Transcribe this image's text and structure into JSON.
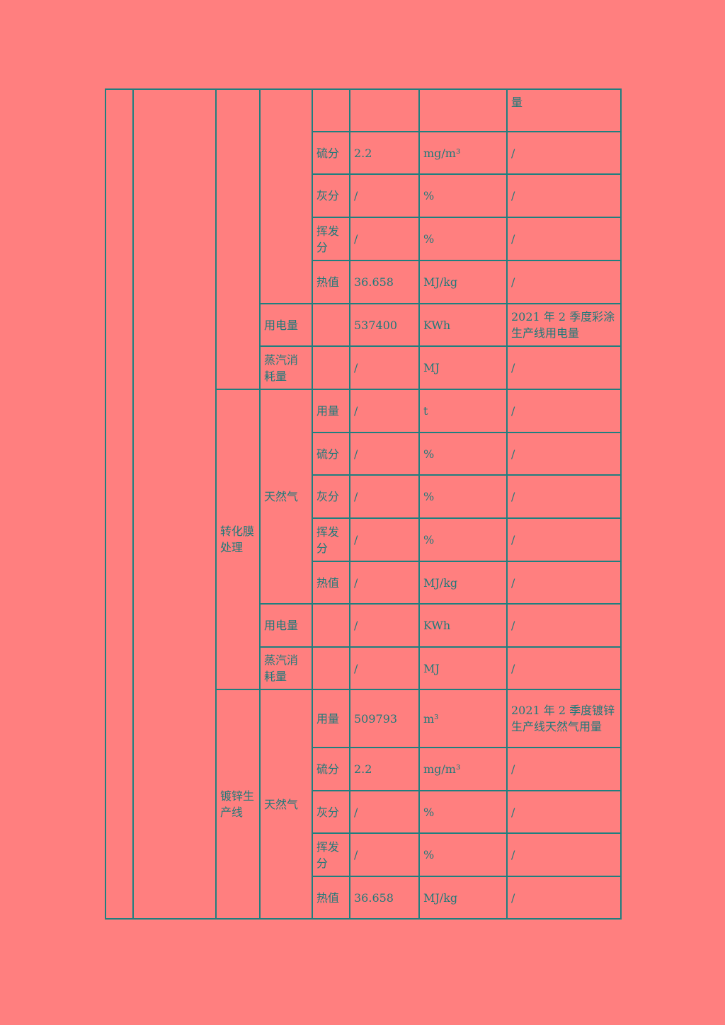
{
  "groups": [
    {
      "process": "",
      "process_rows": 7
    },
    {
      "process": "转化膜处理",
      "process_rows": 7
    },
    {
      "process": "镀锌生产线",
      "process_rows": 5
    }
  ],
  "rows": [
    {
      "h": 60,
      "cat": "",
      "cat_rows": 5,
      "item": "",
      "value": "",
      "unit": "",
      "note": "量",
      "note_top": true
    },
    {
      "h": 60,
      "item": "硫分",
      "value": "2.2",
      "unit": "mg/m³",
      "note": "/"
    },
    {
      "h": 61,
      "item": "灰分",
      "value": "/",
      "unit": "%",
      "note": "/"
    },
    {
      "h": 61,
      "item": "挥发分",
      "value": "/",
      "unit": "%",
      "note": "/"
    },
    {
      "h": 61,
      "item": "热值",
      "value": "36.658",
      "unit": "MJ/kg",
      "note": "/"
    },
    {
      "h": 60,
      "cat": "用电量",
      "cat_rows": 1,
      "item": "",
      "value": "537400",
      "unit": "KWh",
      "note": "2021 年 2 季度彩涂生产线用电量"
    },
    {
      "h": 61,
      "cat": "蒸汽消耗量",
      "cat_rows": 1,
      "item": "",
      "value": "/",
      "unit": "MJ",
      "note": "/"
    },
    {
      "h": 61,
      "cat": "天然气",
      "cat_rows": 5,
      "item": "用量",
      "value": "/",
      "unit": "t",
      "note": "/"
    },
    {
      "h": 60,
      "item": "硫分",
      "value": "/",
      "unit": "%",
      "note": "/"
    },
    {
      "h": 61,
      "item": "灰分",
      "value": "/",
      "unit": "%",
      "note": "/"
    },
    {
      "h": 61,
      "item": "挥发分",
      "value": "/",
      "unit": "%",
      "note": "/"
    },
    {
      "h": 60,
      "item": "热值",
      "value": "/",
      "unit": "MJ/kg",
      "note": "/"
    },
    {
      "h": 61,
      "cat": "用电量",
      "cat_rows": 1,
      "item": "",
      "value": "/",
      "unit": "KWh",
      "note": "/"
    },
    {
      "h": 60,
      "cat": "蒸汽消耗量",
      "cat_rows": 1,
      "item": "",
      "value": "/",
      "unit": "MJ",
      "note": "/"
    },
    {
      "h": 82,
      "cat": "天然气",
      "cat_rows": 5,
      "item": "用量",
      "value": "509793",
      "unit": "m³",
      "note": "2021 年 2 季度镀锌生产线天然气用量"
    },
    {
      "h": 61,
      "item": "硫分",
      "value": "2.2",
      "unit": "mg/m³",
      "note": "/"
    },
    {
      "h": 60,
      "item": "灰分",
      "value": "/",
      "unit": "%",
      "note": "/"
    },
    {
      "h": 61,
      "item": "挥发分",
      "value": "/",
      "unit": "%",
      "note": "/"
    },
    {
      "h": 60,
      "item": "热值",
      "value": "36.658",
      "unit": "MJ/kg",
      "note": "/"
    }
  ]
}
